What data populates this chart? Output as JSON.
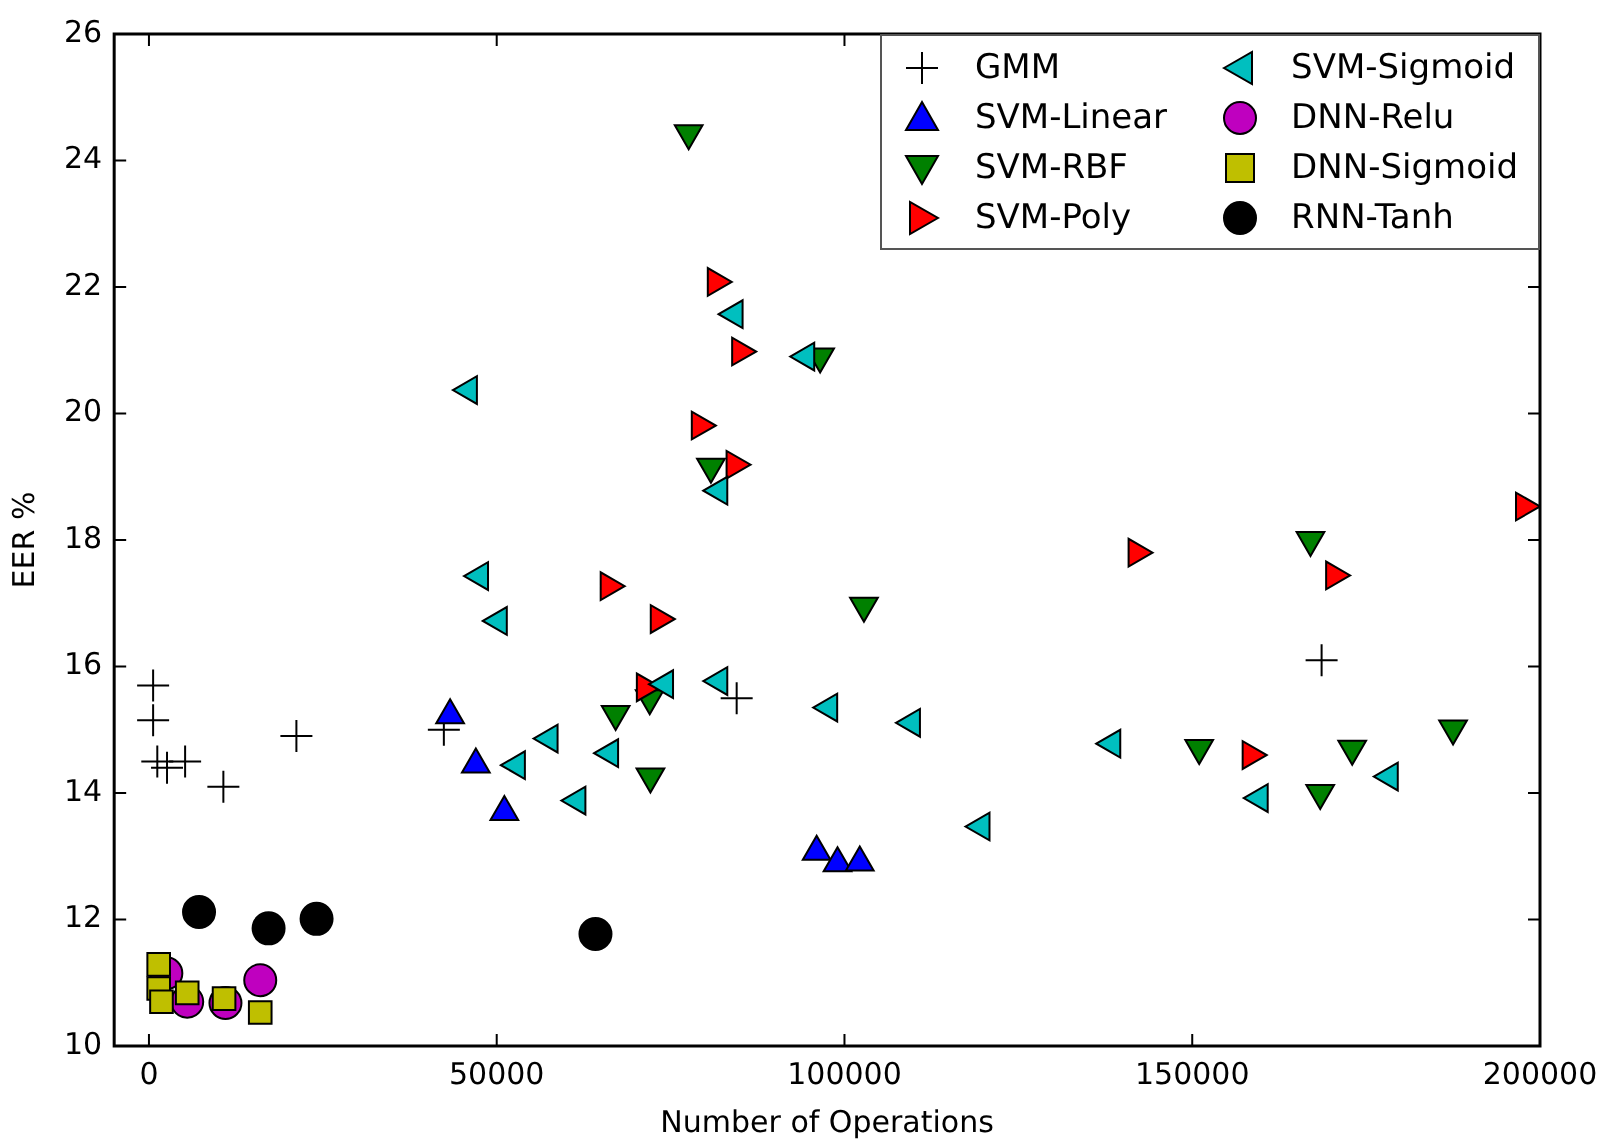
{
  "chart_data": {
    "type": "scatter",
    "xlabel": "Number of Operations",
    "ylabel": "EER %",
    "xlim": [
      -5000,
      200000
    ],
    "xticks": [
      0,
      50000,
      100000,
      150000,
      200000
    ],
    "ylim": [
      10,
      26
    ],
    "yticks": [
      10,
      12,
      14,
      16,
      18,
      20,
      22,
      24,
      26
    ],
    "grid": false,
    "legend": "top right",
    "series": [
      {
        "name": "GMM",
        "color": "#000000",
        "marker": "cross",
        "x": [
          600,
          600,
          1200,
          2600,
          5200,
          10700,
          21200,
          42400,
          84500,
          168600
        ],
        "values": [
          15.7,
          15.15,
          14.5,
          14.4,
          14.5,
          14.1,
          14.9,
          15.0,
          15.5,
          16.1
        ]
      },
      {
        "name": "SVM-Linear",
        "color": "#0000ff",
        "marker": "triangle",
        "x": [
          43300,
          47000,
          51100,
          96000,
          99000,
          102200
        ],
        "values": [
          15.23,
          14.45,
          13.7,
          13.07,
          12.89,
          12.9
        ]
      },
      {
        "name": "SVM-RBF",
        "color": "#008000",
        "marker": "triangle_down",
        "x": [
          77600,
          96500,
          80800,
          102800,
          67100,
          72000,
          72100,
          151000,
          168400,
          173000,
          187500,
          167000
        ],
        "values": [
          24.43,
          20.9,
          19.16,
          16.96,
          15.25,
          15.5,
          14.26,
          14.71,
          14.0,
          14.7,
          15.02,
          18.0
        ]
      },
      {
        "name": "SVM-Poly",
        "color": "#ff0000",
        "marker": "triangle_right",
        "x": [
          81500,
          85000,
          79200,
          84200,
          66100,
          73300,
          71300,
          142000,
          170400,
          197700,
          158400
        ],
        "values": [
          22.08,
          20.98,
          19.81,
          19.19,
          17.27,
          16.75,
          15.67,
          17.8,
          17.44,
          18.53,
          14.6
        ]
      },
      {
        "name": "SVM-Sigmoid",
        "color": "#00bfbf",
        "marker": "triangle_left",
        "x": [
          46000,
          84200,
          94500,
          82000,
          47600,
          50300,
          74200,
          82000,
          57600,
          52900,
          66300,
          61600,
          97800,
          109700,
          119700,
          138500,
          159700,
          178400
        ],
        "values": [
          20.37,
          21.57,
          20.9,
          18.78,
          17.43,
          16.72,
          15.72,
          15.77,
          14.86,
          14.44,
          14.63,
          13.88,
          15.35,
          15.11,
          13.47,
          14.78,
          13.92,
          14.26
        ]
      },
      {
        "name": "DNN-Relu",
        "color": "#bf00bf",
        "marker": "circle",
        "x": [
          2500,
          5500,
          11000,
          16000
        ],
        "values": [
          11.15,
          10.7,
          10.68,
          11.04
        ]
      },
      {
        "name": "DNN-Sigmoid",
        "color": "#bfbf00",
        "marker": "square",
        "x": [
          1400,
          1400,
          1800,
          5500,
          10800,
          16000
        ],
        "values": [
          11.29,
          10.91,
          10.7,
          10.84,
          10.75,
          10.53
        ]
      },
      {
        "name": "RNN-Tanh",
        "color": "#000000",
        "marker": "circle",
        "x": [
          7200,
          17200,
          24100,
          64200
        ],
        "values": [
          12.12,
          11.86,
          12.01,
          11.77
        ]
      }
    ]
  }
}
